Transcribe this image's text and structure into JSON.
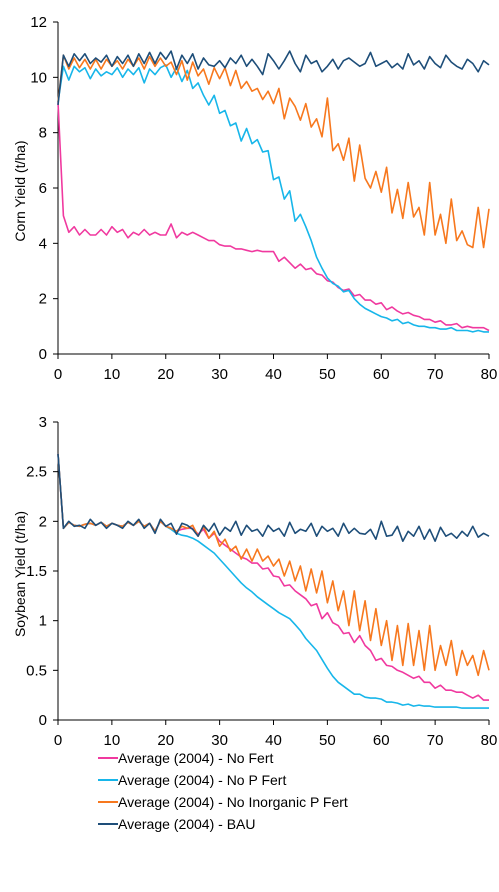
{
  "colors": {
    "no_fert": "#f0399f",
    "no_p_fert": "#17b6ea",
    "no_inorganic_p_fert": "#f7781e",
    "bau": "#1e4e79"
  },
  "legend": {
    "items": [
      {
        "label": "Average (2004) - No Fert",
        "color": "#f0399f"
      },
      {
        "label": "Average (2004) - No P Fert",
        "color": "#17b6ea"
      },
      {
        "label": "Average (2004) - No Inorganic P Fert",
        "color": "#f7781e"
      },
      {
        "label": "Average (2004) - BAU",
        "color": "#1e4e79"
      }
    ],
    "placement": "bottom"
  },
  "chart_data": [
    {
      "type": "line",
      "title": "",
      "xlabel": "",
      "ylabel": "Corn Yield (t/ha)",
      "xlim": [
        0,
        80
      ],
      "ylim": [
        0,
        12
      ],
      "xticks": [
        "0",
        "10",
        "20",
        "30",
        "40",
        "50",
        "60",
        "70",
        "80"
      ],
      "yticks": [
        "0",
        "2",
        "4",
        "6",
        "8",
        "10",
        "12"
      ],
      "grid": false,
      "x": [
        0,
        1,
        2,
        3,
        4,
        5,
        6,
        7,
        8,
        9,
        10,
        11,
        12,
        13,
        14,
        15,
        16,
        17,
        18,
        19,
        20,
        21,
        22,
        23,
        24,
        25,
        26,
        27,
        28,
        29,
        30,
        31,
        32,
        33,
        34,
        35,
        36,
        37,
        38,
        39,
        40,
        41,
        42,
        43,
        44,
        45,
        46,
        47,
        48,
        49,
        50,
        51,
        52,
        53,
        54,
        55,
        56,
        57,
        58,
        59,
        60,
        61,
        62,
        63,
        64,
        65,
        66,
        67,
        68,
        69,
        70,
        71,
        72,
        73,
        74,
        75,
        76,
        77,
        78,
        79,
        80
      ],
      "series": [
        {
          "name": "Average (2004) - No Fert",
          "color": "#f0399f",
          "values": [
            9.1,
            5.0,
            4.4,
            4.6,
            4.3,
            4.5,
            4.3,
            4.3,
            4.5,
            4.3,
            4.6,
            4.4,
            4.5,
            4.2,
            4.4,
            4.3,
            4.5,
            4.3,
            4.4,
            4.3,
            4.3,
            4.7,
            4.2,
            4.4,
            4.3,
            4.4,
            4.3,
            4.2,
            4.1,
            4.1,
            3.95,
            3.9,
            3.9,
            3.8,
            3.8,
            3.75,
            3.7,
            3.75,
            3.7,
            3.7,
            3.7,
            3.35,
            3.5,
            3.3,
            3.1,
            3.25,
            3.05,
            3.1,
            2.9,
            2.85,
            2.65,
            2.6,
            2.4,
            2.3,
            2.35,
            2.1,
            2.15,
            1.95,
            1.95,
            1.8,
            1.85,
            1.6,
            1.7,
            1.55,
            1.45,
            1.5,
            1.4,
            1.35,
            1.25,
            1.25,
            1.15,
            1.2,
            1.05,
            1.05,
            1.1,
            0.95,
            1.0,
            0.95,
            0.95,
            0.95,
            0.85
          ]
        },
        {
          "name": "Average (2004) - No P Fert",
          "color": "#17b6ea",
          "values": [
            9.1,
            10.4,
            9.9,
            10.4,
            10.2,
            10.35,
            9.95,
            10.3,
            10.05,
            10.2,
            10.1,
            10.35,
            10.0,
            10.3,
            10.1,
            10.35,
            9.8,
            10.3,
            10.1,
            10.35,
            10.45,
            10.0,
            10.35,
            9.85,
            10.25,
            9.6,
            9.8,
            9.35,
            9.0,
            9.35,
            8.7,
            8.8,
            8.25,
            8.35,
            7.7,
            8.15,
            7.6,
            7.75,
            7.3,
            7.35,
            6.3,
            6.4,
            5.6,
            5.9,
            4.8,
            5.05,
            4.6,
            4.1,
            3.5,
            3.1,
            2.75,
            2.55,
            2.45,
            2.25,
            2.3,
            2.0,
            1.8,
            1.65,
            1.55,
            1.45,
            1.35,
            1.3,
            1.2,
            1.25,
            1.1,
            1.15,
            1.05,
            1.0,
            1.0,
            0.95,
            0.95,
            0.9,
            0.9,
            0.95,
            0.85,
            0.85,
            0.85,
            0.8,
            0.85,
            0.8,
            0.8
          ]
        },
        {
          "name": "Average (2004) - No Inorganic P Fert",
          "color": "#f7781e",
          "values": [
            9.1,
            10.8,
            10.3,
            10.7,
            10.35,
            10.65,
            10.3,
            10.65,
            10.3,
            10.65,
            10.4,
            10.6,
            10.3,
            10.65,
            10.4,
            10.7,
            10.3,
            10.75,
            10.4,
            10.7,
            10.4,
            10.55,
            10.1,
            10.6,
            9.9,
            10.55,
            10.05,
            10.3,
            9.75,
            10.35,
            9.95,
            10.35,
            9.7,
            10.25,
            9.6,
            9.85,
            9.5,
            9.6,
            9.2,
            9.5,
            9.05,
            9.6,
            8.5,
            9.25,
            8.95,
            8.45,
            9.05,
            8.2,
            8.5,
            7.85,
            9.25,
            7.35,
            7.6,
            7.0,
            7.8,
            6.25,
            7.55,
            6.35,
            6.0,
            6.6,
            5.85,
            6.75,
            5.1,
            5.95,
            4.9,
            6.2,
            4.95,
            5.3,
            4.3,
            6.2,
            4.3,
            5.05,
            4.0,
            5.6,
            4.1,
            4.45,
            3.95,
            3.85,
            5.3,
            3.85,
            5.25
          ]
        },
        {
          "name": "Average (2004) - BAU",
          "color": "#1e4e79",
          "values": [
            9.0,
            10.8,
            10.4,
            10.85,
            10.6,
            10.85,
            10.5,
            10.7,
            10.55,
            10.8,
            10.4,
            10.75,
            10.5,
            10.8,
            10.4,
            10.85,
            10.5,
            10.9,
            10.5,
            10.9,
            10.65,
            10.95,
            10.3,
            10.8,
            10.5,
            10.85,
            10.3,
            10.7,
            10.45,
            10.4,
            10.6,
            10.35,
            10.7,
            10.5,
            10.8,
            10.4,
            10.65,
            10.4,
            10.1,
            10.85,
            10.6,
            10.3,
            10.6,
            10.95,
            10.5,
            10.2,
            10.8,
            10.5,
            10.6,
            10.2,
            10.4,
            10.65,
            10.3,
            10.6,
            10.7,
            10.55,
            10.4,
            10.5,
            10.9,
            10.4,
            10.5,
            10.6,
            10.35,
            10.5,
            10.3,
            10.85,
            10.45,
            10.6,
            10.3,
            10.75,
            10.5,
            10.35,
            10.8,
            10.55,
            10.4,
            10.3,
            10.65,
            10.5,
            10.2,
            10.6,
            10.45
          ]
        }
      ]
    },
    {
      "type": "line",
      "title": "",
      "xlabel": "",
      "ylabel": "Soybean Yield (t/ha)",
      "xlim": [
        0,
        80
      ],
      "ylim": [
        0,
        3
      ],
      "xticks": [
        "0",
        "10",
        "20",
        "30",
        "40",
        "50",
        "60",
        "70",
        "80"
      ],
      "yticks": [
        "0",
        "0.5",
        "1",
        "1.5",
        "2",
        "2.5",
        "3"
      ],
      "grid": false,
      "x": [
        0,
        1,
        2,
        3,
        4,
        5,
        6,
        7,
        8,
        9,
        10,
        11,
        12,
        13,
        14,
        15,
        16,
        17,
        18,
        19,
        20,
        21,
        22,
        23,
        24,
        25,
        26,
        27,
        28,
        29,
        30,
        31,
        32,
        33,
        34,
        35,
        36,
        37,
        38,
        39,
        40,
        41,
        42,
        43,
        44,
        45,
        46,
        47,
        48,
        49,
        50,
        51,
        52,
        53,
        54,
        55,
        56,
        57,
        58,
        59,
        60,
        61,
        62,
        63,
        64,
        65,
        66,
        67,
        68,
        69,
        70,
        71,
        72,
        73,
        74,
        75,
        76,
        77,
        78,
        79,
        80
      ],
      "series": [
        {
          "name": "Average (2004) - No Fert",
          "color": "#f0399f",
          "values": [
            2.68,
            1.93,
            1.99,
            1.96,
            1.95,
            1.97,
            1.98,
            1.96,
            1.99,
            1.95,
            1.98,
            1.96,
            1.95,
            1.99,
            1.96,
            2.0,
            1.95,
            1.98,
            1.9,
            2.0,
            1.95,
            1.93,
            1.9,
            1.92,
            1.93,
            1.93,
            1.87,
            1.92,
            1.83,
            1.88,
            1.8,
            1.76,
            1.72,
            1.68,
            1.64,
            1.62,
            1.58,
            1.58,
            1.52,
            1.53,
            1.45,
            1.44,
            1.35,
            1.36,
            1.3,
            1.26,
            1.22,
            1.15,
            1.17,
            1.02,
            1.08,
            0.98,
            0.95,
            0.87,
            0.88,
            0.78,
            0.85,
            0.75,
            0.7,
            0.6,
            0.62,
            0.55,
            0.54,
            0.5,
            0.48,
            0.45,
            0.42,
            0.44,
            0.38,
            0.38,
            0.32,
            0.35,
            0.3,
            0.3,
            0.28,
            0.28,
            0.25,
            0.22,
            0.25,
            0.2,
            0.2
          ]
        },
        {
          "name": "Average (2004) - No P Fert",
          "color": "#17b6ea",
          "values": [
            2.68,
            1.93,
            1.99,
            1.96,
            1.95,
            1.97,
            1.98,
            1.96,
            1.99,
            1.95,
            1.98,
            1.96,
            1.95,
            1.99,
            1.96,
            2.0,
            1.95,
            1.98,
            1.9,
            2.0,
            1.95,
            1.92,
            1.88,
            1.86,
            1.85,
            1.83,
            1.8,
            1.76,
            1.72,
            1.68,
            1.62,
            1.56,
            1.5,
            1.44,
            1.38,
            1.33,
            1.29,
            1.24,
            1.2,
            1.16,
            1.12,
            1.08,
            1.05,
            1.02,
            0.96,
            0.9,
            0.82,
            0.76,
            0.7,
            0.61,
            0.52,
            0.44,
            0.38,
            0.34,
            0.3,
            0.26,
            0.26,
            0.23,
            0.22,
            0.22,
            0.21,
            0.18,
            0.18,
            0.17,
            0.15,
            0.16,
            0.14,
            0.15,
            0.14,
            0.14,
            0.13,
            0.13,
            0.13,
            0.13,
            0.13,
            0.12,
            0.12,
            0.12,
            0.12,
            0.12,
            0.12
          ]
        },
        {
          "name": "Average (2004) - No Inorganic P Fert",
          "color": "#f7781e",
          "values": [
            2.68,
            1.93,
            1.99,
            1.96,
            1.95,
            1.97,
            1.98,
            1.96,
            1.99,
            1.95,
            1.98,
            1.96,
            1.95,
            1.99,
            1.96,
            2.0,
            1.95,
            1.98,
            1.9,
            2.0,
            1.95,
            1.93,
            1.9,
            1.95,
            1.93,
            1.96,
            1.85,
            1.95,
            1.83,
            1.9,
            1.75,
            1.82,
            1.7,
            1.75,
            1.62,
            1.72,
            1.6,
            1.72,
            1.6,
            1.65,
            1.55,
            1.62,
            1.45,
            1.6,
            1.4,
            1.55,
            1.3,
            1.52,
            1.28,
            1.5,
            1.18,
            1.4,
            1.1,
            1.3,
            0.95,
            1.3,
            0.9,
            1.2,
            0.8,
            1.12,
            0.75,
            1.0,
            0.6,
            0.95,
            0.55,
            0.97,
            0.55,
            0.9,
            0.5,
            0.95,
            0.5,
            0.75,
            0.55,
            0.8,
            0.45,
            0.7,
            0.55,
            0.65,
            0.45,
            0.7,
            0.5
          ]
        },
        {
          "name": "Average (2004) - BAU",
          "color": "#1e4e79",
          "values": [
            2.68,
            1.93,
            2.0,
            1.95,
            1.96,
            1.93,
            2.02,
            1.96,
            1.99,
            1.93,
            1.98,
            1.96,
            1.93,
            2.0,
            1.96,
            2.02,
            1.93,
            1.98,
            1.88,
            2.02,
            1.95,
            1.98,
            1.87,
            1.98,
            1.96,
            1.92,
            1.85,
            1.96,
            1.9,
            1.98,
            1.86,
            1.94,
            1.9,
            2.0,
            1.86,
            1.96,
            1.9,
            1.92,
            1.85,
            1.96,
            1.9,
            1.93,
            1.85,
            1.99,
            1.88,
            1.92,
            1.9,
            1.98,
            1.85,
            1.95,
            1.9,
            1.93,
            1.85,
            1.98,
            1.88,
            1.93,
            1.88,
            1.87,
            1.92,
            1.82,
            2.0,
            1.85,
            1.86,
            1.95,
            1.8,
            1.9,
            1.85,
            1.95,
            1.82,
            1.92,
            1.8,
            1.94,
            1.85,
            1.88,
            1.83,
            1.9,
            1.85,
            1.95,
            1.84,
            1.88,
            1.85
          ]
        }
      ]
    }
  ]
}
